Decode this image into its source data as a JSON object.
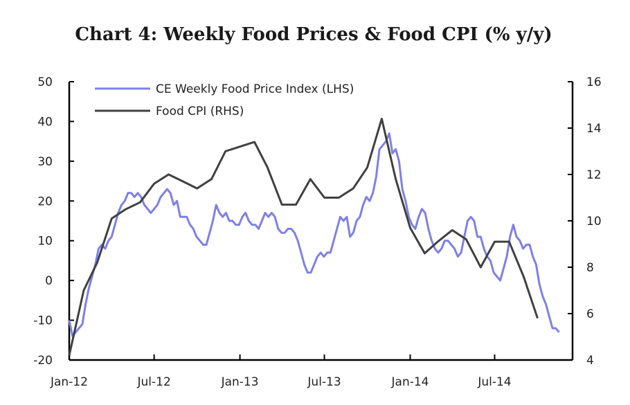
{
  "chart_data": {
    "type": "line",
    "title": "Chart 4: Weekly Food Prices & Food CPI (% y/y)",
    "x_ticks": [
      "Jan-12",
      "Jul-12",
      "Jan-13",
      "Jul-13",
      "Jan-14",
      "Jul-14"
    ],
    "y_left": {
      "range": [
        -20,
        50
      ],
      "ticks": [
        "-20",
        "-10",
        "0",
        "10",
        "20",
        "30",
        "40",
        "50"
      ]
    },
    "y_right": {
      "range": [
        4,
        16
      ],
      "ticks": [
        "4",
        "6",
        "8",
        "10",
        "12",
        "14",
        "16"
      ]
    },
    "legend_position": "top-left",
    "grid": false,
    "series": [
      {
        "name": "CE Weekly Food Price Index (LHS)",
        "axis": "left",
        "color": "#7f7fe9",
        "points": [
          [
            "2012-01-01",
            -10
          ],
          [
            "2012-01-08",
            -14
          ],
          [
            "2012-01-15",
            -13
          ],
          [
            "2012-01-22",
            -12
          ],
          [
            "2012-01-29",
            -11
          ],
          [
            "2012-02-05",
            -6
          ],
          [
            "2012-02-12",
            -2
          ],
          [
            "2012-02-19",
            1
          ],
          [
            "2012-02-26",
            4
          ],
          [
            "2012-03-04",
            8
          ],
          [
            "2012-03-11",
            9
          ],
          [
            "2012-03-18",
            8
          ],
          [
            "2012-03-25",
            10
          ],
          [
            "2012-04-01",
            11
          ],
          [
            "2012-04-08",
            14
          ],
          [
            "2012-04-15",
            17
          ],
          [
            "2012-04-22",
            19
          ],
          [
            "2012-04-29",
            20
          ],
          [
            "2012-05-06",
            22
          ],
          [
            "2012-05-13",
            22
          ],
          [
            "2012-05-20",
            21
          ],
          [
            "2012-05-27",
            22
          ],
          [
            "2012-06-03",
            21
          ],
          [
            "2012-06-10",
            19
          ],
          [
            "2012-06-17",
            18
          ],
          [
            "2012-06-24",
            17
          ],
          [
            "2012-07-01",
            18
          ],
          [
            "2012-07-08",
            19
          ],
          [
            "2012-07-15",
            21
          ],
          [
            "2012-07-22",
            22
          ],
          [
            "2012-07-29",
            23
          ],
          [
            "2012-08-05",
            22
          ],
          [
            "2012-08-12",
            19
          ],
          [
            "2012-08-19",
            20
          ],
          [
            "2012-08-26",
            16
          ],
          [
            "2012-09-02",
            16
          ],
          [
            "2012-09-09",
            16
          ],
          [
            "2012-09-16",
            14
          ],
          [
            "2012-09-23",
            13
          ],
          [
            "2012-09-30",
            11
          ],
          [
            "2012-10-07",
            10
          ],
          [
            "2012-10-14",
            9
          ],
          [
            "2012-10-21",
            9
          ],
          [
            "2012-10-28",
            12
          ],
          [
            "2012-11-04",
            15
          ],
          [
            "2012-11-11",
            19
          ],
          [
            "2012-11-18",
            17
          ],
          [
            "2012-11-25",
            16
          ],
          [
            "2012-12-02",
            17
          ],
          [
            "2012-12-09",
            15
          ],
          [
            "2012-12-16",
            15
          ],
          [
            "2012-12-23",
            14
          ],
          [
            "2012-12-30",
            14
          ],
          [
            "2013-01-06",
            16
          ],
          [
            "2013-01-13",
            17
          ],
          [
            "2013-01-20",
            15
          ],
          [
            "2013-01-27",
            14
          ],
          [
            "2013-02-03",
            14
          ],
          [
            "2013-02-10",
            13
          ],
          [
            "2013-02-17",
            15
          ],
          [
            "2013-02-24",
            17
          ],
          [
            "2013-03-03",
            16
          ],
          [
            "2013-03-10",
            17
          ],
          [
            "2013-03-17",
            16
          ],
          [
            "2013-03-24",
            13
          ],
          [
            "2013-03-31",
            12
          ],
          [
            "2013-04-07",
            12
          ],
          [
            "2013-04-14",
            13
          ],
          [
            "2013-04-21",
            13
          ],
          [
            "2013-04-28",
            12
          ],
          [
            "2013-05-05",
            10
          ],
          [
            "2013-05-12",
            7
          ],
          [
            "2013-05-19",
            4
          ],
          [
            "2013-05-26",
            2
          ],
          [
            "2013-06-02",
            2
          ],
          [
            "2013-06-09",
            4
          ],
          [
            "2013-06-16",
            6
          ],
          [
            "2013-06-23",
            7
          ],
          [
            "2013-06-30",
            6
          ],
          [
            "2013-07-07",
            7
          ],
          [
            "2013-07-14",
            7
          ],
          [
            "2013-07-21",
            10
          ],
          [
            "2013-07-28",
            13
          ],
          [
            "2013-08-04",
            16
          ],
          [
            "2013-08-11",
            15
          ],
          [
            "2013-08-18",
            16
          ],
          [
            "2013-08-25",
            11
          ],
          [
            "2013-09-01",
            12
          ],
          [
            "2013-09-08",
            15
          ],
          [
            "2013-09-15",
            16
          ],
          [
            "2013-09-22",
            19
          ],
          [
            "2013-09-29",
            21
          ],
          [
            "2013-10-06",
            20
          ],
          [
            "2013-10-13",
            22
          ],
          [
            "2013-10-20",
            26
          ],
          [
            "2013-10-27",
            33
          ],
          [
            "2013-11-03",
            34
          ],
          [
            "2013-11-10",
            35
          ],
          [
            "2013-11-17",
            37
          ],
          [
            "2013-11-24",
            32
          ],
          [
            "2013-12-01",
            33
          ],
          [
            "2013-12-08",
            30
          ],
          [
            "2013-12-15",
            23
          ],
          [
            "2013-12-22",
            20
          ],
          [
            "2013-12-29",
            16
          ],
          [
            "2014-01-05",
            14
          ],
          [
            "2014-01-12",
            13
          ],
          [
            "2014-01-19",
            16
          ],
          [
            "2014-01-26",
            18
          ],
          [
            "2014-02-02",
            17
          ],
          [
            "2014-02-09",
            13
          ],
          [
            "2014-02-16",
            10
          ],
          [
            "2014-02-23",
            8
          ],
          [
            "2014-03-02",
            7
          ],
          [
            "2014-03-09",
            8
          ],
          [
            "2014-03-16",
            10
          ],
          [
            "2014-03-23",
            10
          ],
          [
            "2014-03-30",
            9
          ],
          [
            "2014-04-06",
            8
          ],
          [
            "2014-04-13",
            6
          ],
          [
            "2014-04-20",
            7
          ],
          [
            "2014-04-27",
            11
          ],
          [
            "2014-05-04",
            15
          ],
          [
            "2014-05-11",
            16
          ],
          [
            "2014-05-18",
            15
          ],
          [
            "2014-05-25",
            11
          ],
          [
            "2014-06-01",
            11
          ],
          [
            "2014-06-08",
            8
          ],
          [
            "2014-06-15",
            6
          ],
          [
            "2014-06-22",
            5
          ],
          [
            "2014-06-29",
            2
          ],
          [
            "2014-07-06",
            1
          ],
          [
            "2014-07-13",
            0
          ],
          [
            "2014-07-20",
            3
          ],
          [
            "2014-07-27",
            6
          ],
          [
            "2014-08-03",
            11
          ],
          [
            "2014-08-10",
            14
          ],
          [
            "2014-08-17",
            11
          ],
          [
            "2014-08-24",
            10
          ],
          [
            "2014-08-31",
            8
          ],
          [
            "2014-09-07",
            9
          ],
          [
            "2014-09-14",
            9
          ],
          [
            "2014-09-21",
            6
          ],
          [
            "2014-09-28",
            4
          ],
          [
            "2014-10-05",
            -1
          ],
          [
            "2014-10-12",
            -4
          ],
          [
            "2014-10-19",
            -6
          ],
          [
            "2014-10-26",
            -9
          ],
          [
            "2014-11-02",
            -12
          ],
          [
            "2014-11-09",
            -12
          ],
          [
            "2014-11-16",
            -13
          ]
        ]
      },
      {
        "name": "Food CPI (RHS)",
        "axis": "right",
        "color": "#404040",
        "points": [
          [
            "2012-01-01",
            4.2
          ],
          [
            "2012-02-01",
            7.0
          ],
          [
            "2012-03-01",
            8.2
          ],
          [
            "2012-04-01",
            10.1
          ],
          [
            "2012-05-01",
            10.5
          ],
          [
            "2012-06-01",
            10.8
          ],
          [
            "2012-07-01",
            11.6
          ],
          [
            "2012-08-01",
            12.0
          ],
          [
            "2012-09-01",
            11.7
          ],
          [
            "2012-10-01",
            11.4
          ],
          [
            "2012-11-01",
            11.8
          ],
          [
            "2012-12-01",
            13.0
          ],
          [
            "2013-01-01",
            13.2
          ],
          [
            "2013-02-01",
            13.4
          ],
          [
            "2013-03-01",
            12.3
          ],
          [
            "2013-04-01",
            10.7
          ],
          [
            "2013-05-01",
            10.7
          ],
          [
            "2013-06-01",
            11.8
          ],
          [
            "2013-07-01",
            11.0
          ],
          [
            "2013-08-01",
            11.0
          ],
          [
            "2013-09-01",
            11.4
          ],
          [
            "2013-10-01",
            12.3
          ],
          [
            "2013-11-01",
            14.4
          ],
          [
            "2013-12-01",
            11.8
          ],
          [
            "2014-01-01",
            9.7
          ],
          [
            "2014-02-01",
            8.6
          ],
          [
            "2014-03-01",
            9.1
          ],
          [
            "2014-04-01",
            9.6
          ],
          [
            "2014-05-01",
            9.2
          ],
          [
            "2014-06-01",
            8.0
          ],
          [
            "2014-07-01",
            9.1
          ],
          [
            "2014-08-01",
            9.1
          ],
          [
            "2014-09-01",
            7.6
          ],
          [
            "2014-10-01",
            5.8
          ]
        ]
      }
    ]
  }
}
